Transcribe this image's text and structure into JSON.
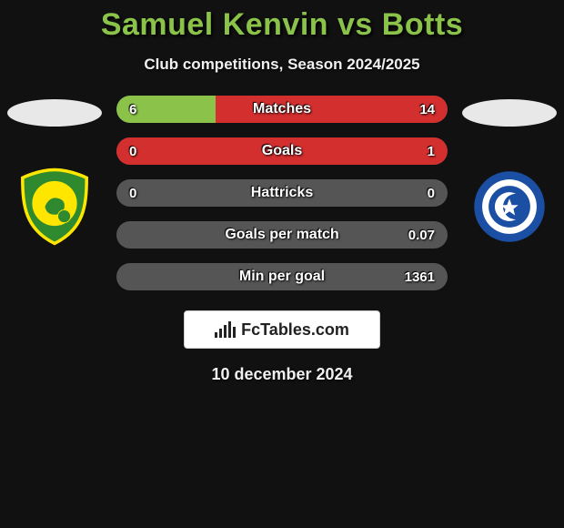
{
  "background_color": "#111111",
  "title": {
    "player1": "Samuel Kenvin",
    "vs": "vs",
    "player2": "Botts",
    "color": "#8bc34a",
    "fontsize": 34
  },
  "subtitle": {
    "text": "Club competitions, Season 2024/2025",
    "color": "#f0f0f0",
    "fontsize": 17
  },
  "player1_badge": {
    "shape": "shield",
    "primary_color": "#ffe600",
    "secondary_color": "#2f8a2f",
    "motif": "canary-bird"
  },
  "player2_badge": {
    "shape": "shield-round",
    "primary_color": "#ffffff",
    "secondary_color": "#1a4fa3",
    "motif": "star-crescent"
  },
  "stats": [
    {
      "label": "Matches",
      "left_value": "6",
      "right_value": "14",
      "left_num": 6,
      "right_num": 14,
      "left_color": "#8bc34a",
      "right_color": "#d32f2f",
      "bg_color": "#555555",
      "left_pct": 30,
      "right_pct": 70
    },
    {
      "label": "Goals",
      "left_value": "0",
      "right_value": "1",
      "left_num": 0,
      "right_num": 1,
      "left_color": "#8bc34a",
      "right_color": "#d32f2f",
      "bg_color": "#555555",
      "left_pct": 0,
      "right_pct": 100
    },
    {
      "label": "Hattricks",
      "left_value": "0",
      "right_value": "0",
      "left_num": 0,
      "right_num": 0,
      "left_color": "#8bc34a",
      "right_color": "#d32f2f",
      "bg_color": "#555555",
      "left_pct": 0,
      "right_pct": 0
    },
    {
      "label": "Goals per match",
      "left_value": "",
      "right_value": "0.07",
      "left_num": 0,
      "right_num": 0.07,
      "left_color": "#8bc34a",
      "right_color": "#d32f2f",
      "bg_color": "#555555",
      "left_pct": 0,
      "right_pct": 0
    },
    {
      "label": "Min per goal",
      "left_value": "",
      "right_value": "1361",
      "left_num": 0,
      "right_num": 1361,
      "left_color": "#8bc34a",
      "right_color": "#d32f2f",
      "bg_color": "#555555",
      "left_pct": 0,
      "right_pct": 0
    }
  ],
  "stat_bar": {
    "height": 30,
    "radius": 15,
    "label_fontsize": 16,
    "value_fontsize": 15,
    "default_bg": "#555555"
  },
  "footer": {
    "brand_text": "FcTables.com",
    "bg_color": "#ffffff",
    "text_color": "#222222",
    "icon_bars": [
      6,
      10,
      14,
      18,
      12
    ]
  },
  "date": {
    "text": "10 december 2024",
    "color": "#f0f0f0",
    "fontsize": 18
  }
}
